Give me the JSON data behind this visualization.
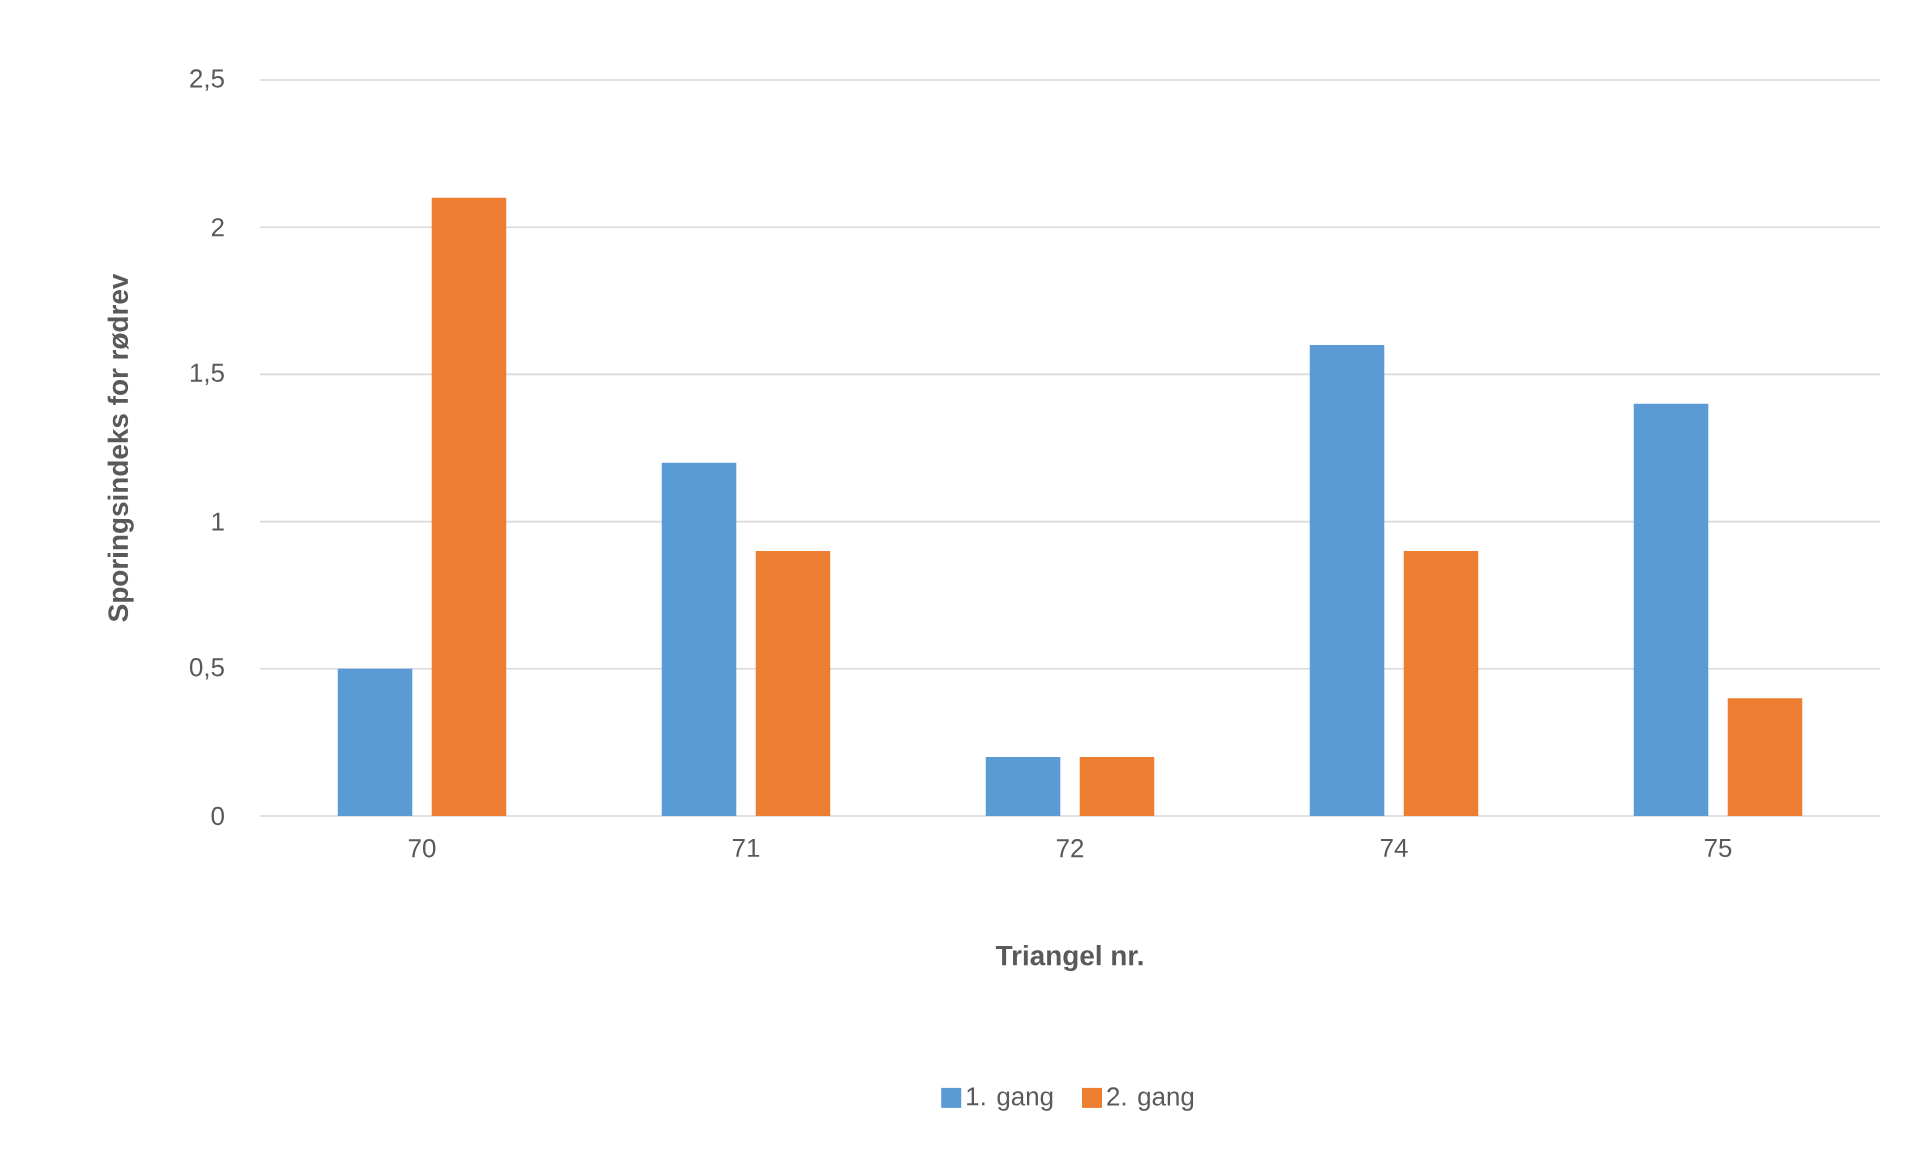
{
  "chart_data": {
    "type": "bar",
    "xlabel": "Triangel nr.",
    "ylabel": "Sporingsindeks for rødrev",
    "categories": [
      "70",
      "71",
      "72",
      "74",
      "75"
    ],
    "series": [
      {
        "name": "1. gang",
        "color": "#5b9bd5",
        "values": [
          0.5,
          1.2,
          0.2,
          1.6,
          1.4
        ]
      },
      {
        "name": "2. gang",
        "color": "#ed7d31",
        "values": [
          2.1,
          0.9,
          0.2,
          0.9,
          0.4
        ]
      }
    ],
    "ylim": [
      0,
      2.5
    ],
    "yticks": [
      0,
      {
        "value": 0.5,
        "label": "0,5"
      },
      1,
      {
        "value": 1.5,
        "label": "1,5"
      },
      2,
      {
        "value": 2.5,
        "label": "2,5"
      }
    ],
    "grid": "y",
    "legend": "bottom"
  }
}
